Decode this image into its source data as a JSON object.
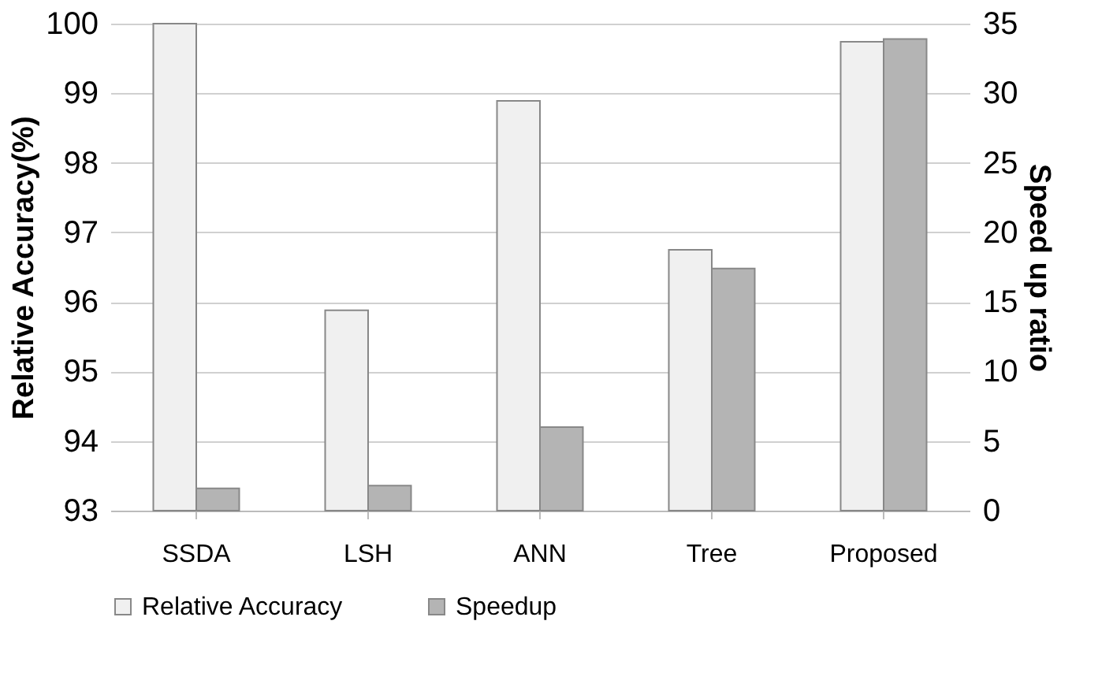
{
  "chart_data": {
    "type": "bar",
    "categories": [
      "SSDA",
      "LSH",
      "ANN",
      "Tree",
      "Proposed"
    ],
    "ylabel": "Relative Accuracy(%)",
    "y2label": "Speed up ratio",
    "series": [
      {
        "name": "Relative Accuracy",
        "color": "#f0f0f0",
        "values": [
          100,
          95.88,
          98.89,
          96.75,
          99.74
        ]
      },
      {
        "name": "Speedup",
        "color": "#b4b4b4",
        "axis": "y2",
        "values": [
          1.6,
          1.8,
          6.0,
          17.4,
          33.9
        ]
      }
    ],
    "ylim": [
      93,
      100
    ],
    "yticks": [
      93,
      94,
      95,
      96,
      97,
      98,
      99,
      100
    ],
    "y2lim": [
      0,
      35
    ],
    "y2ticks": [
      0,
      5,
      10,
      15,
      20,
      25,
      30,
      35
    ],
    "grid": "y",
    "legend": "bottom"
  }
}
